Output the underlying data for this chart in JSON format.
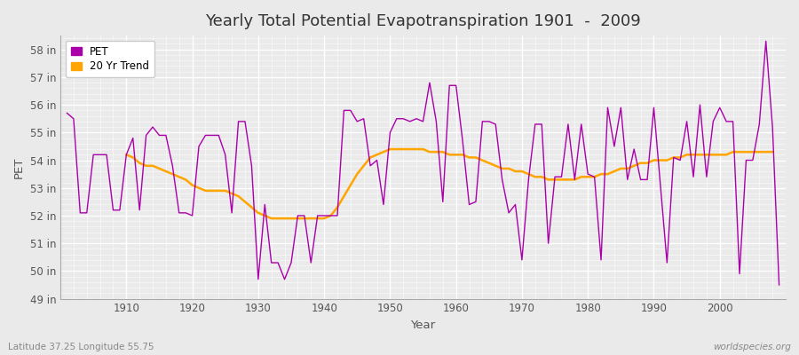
{
  "title": "Yearly Total Potential Evapotranspiration 1901  -  2009",
  "xlabel": "Year",
  "ylabel": "PET",
  "bottom_left": "Latitude 37.25 Longitude 55.75",
  "bottom_right": "worldspecies.org",
  "pet_color": "#AA00AA",
  "trend_color": "#FFA500",
  "bg_color": "#EAEAEA",
  "plot_bg_color": "#EAEAEA",
  "grid_color": "#FFFFFF",
  "ylim": [
    49,
    58.5
  ],
  "yticks": [
    49,
    50,
    51,
    52,
    53,
    54,
    55,
    56,
    57,
    58
  ],
  "ytick_labels": [
    "49 in",
    "50 in",
    "51 in",
    "52 in",
    "53 in",
    "54 in",
    "55 in",
    "56 in",
    "57 in",
    "58 in"
  ],
  "years": [
    1901,
    1902,
    1903,
    1904,
    1905,
    1906,
    1907,
    1908,
    1909,
    1910,
    1911,
    1912,
    1913,
    1914,
    1915,
    1916,
    1917,
    1918,
    1919,
    1920,
    1921,
    1922,
    1923,
    1924,
    1925,
    1926,
    1927,
    1928,
    1929,
    1930,
    1931,
    1932,
    1933,
    1934,
    1935,
    1936,
    1937,
    1938,
    1939,
    1940,
    1941,
    1942,
    1943,
    1944,
    1945,
    1946,
    1947,
    1948,
    1949,
    1950,
    1951,
    1952,
    1953,
    1954,
    1955,
    1956,
    1957,
    1958,
    1959,
    1960,
    1961,
    1962,
    1963,
    1964,
    1965,
    1966,
    1967,
    1968,
    1969,
    1970,
    1971,
    1972,
    1973,
    1974,
    1975,
    1976,
    1977,
    1978,
    1979,
    1980,
    1981,
    1982,
    1983,
    1984,
    1985,
    1986,
    1987,
    1988,
    1989,
    1990,
    1991,
    1992,
    1993,
    1994,
    1995,
    1996,
    1997,
    1998,
    1999,
    2000,
    2001,
    2002,
    2003,
    2004,
    2005,
    2006,
    2007,
    2008,
    2009
  ],
  "pet_values": [
    55.7,
    55.5,
    52.1,
    52.1,
    54.2,
    54.2,
    54.2,
    52.2,
    52.2,
    54.2,
    54.8,
    52.2,
    54.9,
    55.2,
    54.9,
    54.9,
    53.8,
    52.1,
    52.1,
    52.0,
    54.5,
    54.9,
    54.9,
    54.9,
    54.2,
    52.1,
    55.4,
    55.4,
    53.8,
    49.7,
    52.4,
    50.3,
    50.3,
    49.7,
    50.3,
    52.0,
    52.0,
    50.3,
    52.0,
    52.0,
    52.0,
    52.0,
    55.8,
    55.8,
    55.4,
    55.5,
    53.8,
    54.0,
    52.4,
    55.0,
    55.5,
    55.5,
    55.4,
    55.5,
    55.4,
    56.8,
    55.4,
    52.5,
    56.7,
    56.7,
    54.7,
    52.4,
    52.5,
    55.4,
    55.4,
    55.3,
    53.3,
    52.1,
    52.4,
    50.4,
    53.3,
    55.3,
    55.3,
    51.0,
    53.4,
    53.4,
    55.3,
    53.3,
    55.3,
    53.5,
    53.4,
    50.4,
    55.9,
    54.5,
    55.9,
    53.3,
    54.4,
    53.3,
    53.3,
    55.9,
    53.1,
    50.3,
    54.1,
    54.0,
    55.4,
    53.4,
    56.0,
    53.4,
    55.4,
    55.9,
    55.4,
    55.4,
    49.9,
    54.0,
    54.0,
    55.3,
    58.3,
    55.2,
    49.5
  ],
  "trend_values": [
    null,
    null,
    null,
    null,
    null,
    null,
    null,
    null,
    null,
    54.2,
    54.1,
    53.9,
    53.8,
    53.8,
    53.7,
    53.6,
    53.5,
    53.4,
    53.3,
    53.1,
    53.0,
    52.9,
    52.9,
    52.9,
    52.9,
    52.8,
    52.7,
    52.5,
    52.3,
    52.1,
    52.0,
    51.9,
    51.9,
    51.9,
    51.9,
    51.9,
    51.9,
    51.9,
    51.9,
    51.9,
    52.0,
    52.3,
    52.7,
    53.1,
    53.5,
    53.8,
    54.1,
    54.2,
    54.3,
    54.4,
    54.4,
    54.4,
    54.4,
    54.4,
    54.4,
    54.3,
    54.3,
    54.3,
    54.2,
    54.2,
    54.2,
    54.1,
    54.1,
    54.0,
    53.9,
    53.8,
    53.7,
    53.7,
    53.6,
    53.6,
    53.5,
    53.4,
    53.4,
    53.3,
    53.3,
    53.3,
    53.3,
    53.3,
    53.4,
    53.4,
    53.4,
    53.5,
    53.5,
    53.6,
    53.7,
    53.7,
    53.8,
    53.9,
    53.9,
    54.0,
    54.0,
    54.0,
    54.1,
    54.1,
    54.2,
    54.2,
    54.2,
    54.2,
    54.2,
    54.2,
    54.2,
    54.3,
    54.3,
    54.3,
    54.3,
    54.3,
    54.3,
    54.3
  ]
}
